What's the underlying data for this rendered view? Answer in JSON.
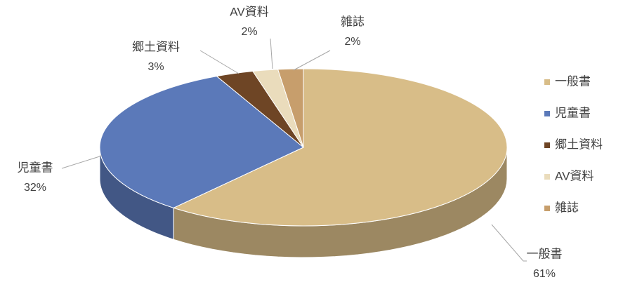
{
  "chart_data": {
    "type": "pie3d",
    "categories": [
      "一般書",
      "児童書",
      "郷土資料",
      "AV資料",
      "雑誌"
    ],
    "values": [
      61,
      32,
      3,
      2,
      2
    ],
    "value_labels": [
      "61%",
      "32%",
      "3%",
      "2%",
      "2%"
    ],
    "colors": [
      "#d8bd88",
      "#5b79b9",
      "#6e4525",
      "#eadcbc",
      "#c79e6c"
    ],
    "legend": "right"
  }
}
